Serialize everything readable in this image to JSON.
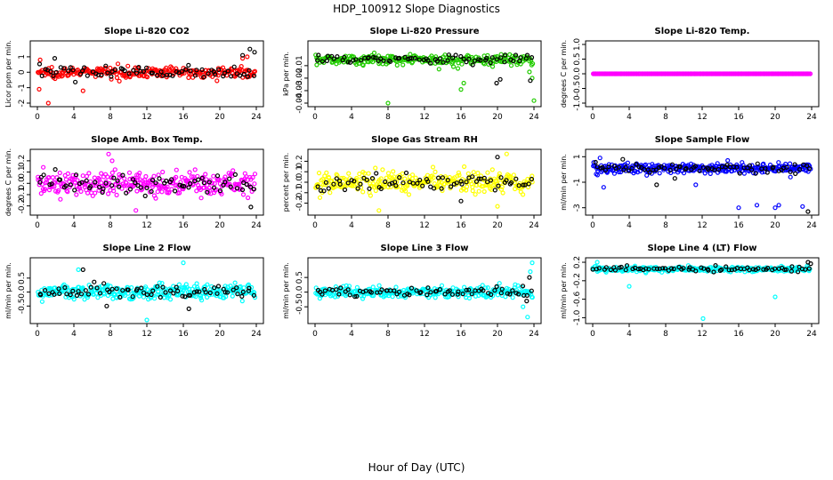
{
  "figure": {
    "title": "HDP_100912  Slope Diagnostics",
    "xlabel": "Hour of Day (UTC)"
  },
  "chart_data": [
    {
      "type": "scatter",
      "title": "Slope Li-820 CO2",
      "ylabel": "Licor ppm per min.",
      "xlim": [
        0,
        24
      ],
      "ylim": [
        -2,
        1.8
      ],
      "xticks": [
        0,
        4,
        8,
        12,
        16,
        20,
        24
      ],
      "xtick_labels": [
        "0",
        "4",
        "8",
        "12",
        "16",
        "20",
        "24"
      ],
      "yticks": [
        -2,
        -1,
        0,
        1
      ],
      "ytick_labels": [
        "-2",
        "-1",
        "0",
        "1"
      ],
      "series": [
        {
          "name": "points",
          "color": "#ff0000",
          "center": 0,
          "spread": 0.3,
          "count": 260,
          "outliers": [
            [
              0.2,
              -1.1
            ],
            [
              0.3,
              0.8
            ],
            [
              1.2,
              -2.0
            ],
            [
              5,
              -1.2
            ],
            [
              22.5,
              0.9
            ],
            [
              23,
              1.0
            ]
          ]
        },
        {
          "name": "black points",
          "color": "#000000",
          "center": 0,
          "spread": 0.35,
          "count": 70,
          "outliers": [
            [
              23.3,
              1.5
            ],
            [
              23.8,
              1.3
            ],
            [
              22.5,
              1.1
            ],
            [
              1.9,
              0.9
            ]
          ]
        }
      ]
    },
    {
      "type": "scatter",
      "title": "Slope Li-820 Pressure",
      "ylabel": "kPa per min.",
      "xlim": [
        0,
        24
      ],
      "ylim": [
        -0.04,
        0.007
      ],
      "xticks": [
        0,
        4,
        8,
        12,
        16,
        20,
        24
      ],
      "xtick_labels": [
        "0",
        "4",
        "8",
        "12",
        "16",
        "20",
        "24"
      ],
      "yticks": [
        -0.04,
        -0.03,
        -0.02,
        -0.01
      ],
      "ytick_labels": [
        "-0.04",
        "-0.03",
        "-0.02",
        "-0.01"
      ],
      "series": [
        {
          "name": "points",
          "color": "#22cc00",
          "center": -0.005,
          "spread": 0.004,
          "count": 260,
          "outliers": [
            [
              8,
              -0.04
            ],
            [
              16,
              -0.029
            ],
            [
              16.3,
              -0.024
            ],
            [
              24,
              -0.038
            ],
            [
              23.8,
              -0.02
            ],
            [
              23.5,
              -0.015
            ]
          ]
        },
        {
          "name": "black points",
          "color": "#000000",
          "center": -0.005,
          "spread": 0.003,
          "count": 70,
          "outliers": [
            [
              19.9,
              -0.024
            ],
            [
              20.3,
              -0.021
            ],
            [
              23.6,
              -0.022
            ]
          ]
        }
      ]
    },
    {
      "type": "scatter",
      "title": "Slope Li-820 Temp.",
      "ylabel": "degrees C per min.",
      "xlim": [
        0,
        24
      ],
      "ylim": [
        -1,
        1
      ],
      "xticks": [
        0,
        4,
        8,
        12,
        16,
        20,
        24
      ],
      "xtick_labels": [
        "0",
        "4",
        "8",
        "12",
        "16",
        "20",
        "24"
      ],
      "yticks": [
        -1,
        -0.5,
        0,
        0.5,
        1
      ],
      "ytick_labels": [
        "-1.0",
        "-0.5",
        "0.0",
        "0.5",
        "1.0"
      ],
      "series": [
        {
          "name": "points",
          "color": "#ff00ff",
          "center": 0,
          "spread": 0.0,
          "count": 330,
          "outliers": []
        }
      ]
    },
    {
      "type": "scatter",
      "title": "Slope Amb. Box Temp.",
      "ylabel": "degrees C per min.",
      "xlim": [
        0,
        24
      ],
      "ylim": [
        -0.25,
        0.27
      ],
      "xticks": [
        0,
        4,
        8,
        12,
        16,
        20,
        24
      ],
      "xtick_labels": [
        "0",
        "4",
        "8",
        "12",
        "16",
        "20",
        "24"
      ],
      "yticks": [
        -0.2,
        -0.1,
        0,
        0.1,
        0.2
      ],
      "ytick_labels": [
        "-0.2",
        "-0.1",
        "0.0",
        "0.1",
        "0.2"
      ],
      "series": [
        {
          "name": "points",
          "color": "#ff00ff",
          "center": 0,
          "spread": 0.1,
          "count": 300,
          "outliers": [
            [
              7.8,
              0.26
            ],
            [
              10.8,
              -0.24
            ],
            [
              8.2,
              0.2
            ]
          ]
        },
        {
          "name": "black points",
          "color": "#000000",
          "center": 0,
          "spread": 0.08,
          "count": 70,
          "outliers": [
            [
              23.4,
              -0.21
            ]
          ]
        }
      ]
    },
    {
      "type": "scatter",
      "title": "Slope Gas Stream RH",
      "ylabel": "percent per min.",
      "xlim": [
        0,
        24
      ],
      "ylim": [
        -0.28,
        0.28
      ],
      "xticks": [
        0,
        4,
        8,
        12,
        16,
        20,
        24
      ],
      "xtick_labels": [
        "0",
        "4",
        "8",
        "12",
        "16",
        "20",
        "24"
      ],
      "yticks": [
        -0.2,
        -0.1,
        0,
        0.1,
        0.2
      ],
      "ytick_labels": [
        "-0.2",
        "-0.1",
        "0.0",
        "0.1",
        "0.2"
      ],
      "series": [
        {
          "name": "points",
          "color": "#ffff00",
          "center": 0,
          "spread": 0.08,
          "count": 300,
          "outliers": [
            [
              7,
              -0.27
            ],
            [
              20,
              -0.23
            ],
            [
              21,
              0.27
            ]
          ]
        },
        {
          "name": "black points",
          "color": "#000000",
          "center": 0,
          "spread": 0.07,
          "count": 70,
          "outliers": [
            [
              20,
              0.24
            ],
            [
              16,
              -0.18
            ]
          ]
        }
      ]
    },
    {
      "type": "scatter",
      "title": "Slope Sample Flow",
      "ylabel": "ml/min per min.",
      "xlim": [
        0,
        24
      ],
      "ylim": [
        -3.3,
        1.3
      ],
      "xticks": [
        0,
        4,
        8,
        12,
        16,
        20,
        24
      ],
      "xtick_labels": [
        "0",
        "4",
        "8",
        "12",
        "16",
        "20",
        "24"
      ],
      "yticks": [
        -3,
        -1,
        1
      ],
      "ytick_labels": [
        "-3",
        "-1",
        "1"
      ],
      "series": [
        {
          "name": "points",
          "color": "#0000ff",
          "center": 0.1,
          "spread": 0.35,
          "count": 300,
          "outliers": [
            [
              1.2,
              -1.4
            ],
            [
              11.3,
              -1.2
            ],
            [
              16,
              -3.0
            ],
            [
              18,
              -2.8
            ],
            [
              20,
              -3.0
            ],
            [
              20.4,
              -2.8
            ],
            [
              23,
              -2.9
            ],
            [
              0.8,
              0.9
            ]
          ]
        },
        {
          "name": "black points",
          "color": "#000000",
          "center": 0.1,
          "spread": 0.3,
          "count": 70,
          "outliers": [
            [
              7,
              -1.2
            ],
            [
              9,
              -0.7
            ],
            [
              23.6,
              -3.3
            ],
            [
              3.3,
              0.8
            ]
          ]
        }
      ]
    },
    {
      "type": "scatter",
      "title": "Slope Line 2 Flow",
      "ylabel": "ml/min per min.",
      "xlim": [
        0,
        24
      ],
      "ylim": [
        -1.0,
        1.1
      ],
      "xticks": [
        0,
        4,
        8,
        12,
        16,
        20,
        24
      ],
      "xtick_labels": [
        "0",
        "4",
        "8",
        "12",
        "16",
        "20",
        "24"
      ],
      "yticks": [
        -0.5,
        0,
        0.5
      ],
      "ytick_labels": [
        "-0.5",
        "0.0",
        "0.5"
      ],
      "series": [
        {
          "name": "points",
          "color": "#00ffff",
          "center": 0,
          "spread": 0.25,
          "count": 300,
          "outliers": [
            [
              12,
              -1.0
            ],
            [
              16,
              1.05
            ],
            [
              4.5,
              0.8
            ]
          ]
        },
        {
          "name": "black points",
          "color": "#000000",
          "center": 0,
          "spread": 0.2,
          "count": 70,
          "outliers": [
            [
              5,
              0.8
            ],
            [
              7.6,
              -0.5
            ],
            [
              16.6,
              -0.6
            ]
          ]
        }
      ]
    },
    {
      "type": "scatter",
      "title": "Slope Line 3 Flow",
      "ylabel": "ml/min per min.",
      "xlim": [
        0,
        24
      ],
      "ylim": [
        -0.95,
        1.05
      ],
      "xticks": [
        0,
        4,
        8,
        12,
        16,
        20,
        24
      ],
      "xtick_labels": [
        "0",
        "4",
        "8",
        "12",
        "16",
        "20",
        "24"
      ],
      "yticks": [
        -0.5,
        0,
        0.5
      ],
      "ytick_labels": [
        "-0.5",
        "0.0",
        "0.5"
      ],
      "series": [
        {
          "name": "points",
          "color": "#00ffff",
          "center": 0,
          "spread": 0.18,
          "count": 300,
          "outliers": [
            [
              23.8,
              1.0
            ],
            [
              23.3,
              -0.85
            ],
            [
              23.6,
              0.7
            ],
            [
              22.8,
              -0.5
            ]
          ]
        },
        {
          "name": "black points",
          "color": "#000000",
          "center": 0,
          "spread": 0.15,
          "count": 70,
          "outliers": [
            [
              23.5,
              0.5
            ],
            [
              23.2,
              -0.3
            ]
          ]
        }
      ]
    },
    {
      "type": "scatter",
      "title": "Slope Line 4 (LT) Flow",
      "ylabel": "ml/min per min.",
      "xlim": [
        0,
        24
      ],
      "ylim": [
        -1.05,
        0.22
      ],
      "xticks": [
        0,
        4,
        8,
        12,
        16,
        20,
        24
      ],
      "xtick_labels": [
        "0",
        "4",
        "8",
        "12",
        "16",
        "20",
        "24"
      ],
      "yticks": [
        -1,
        -0.6,
        -0.2,
        0.2
      ],
      "ytick_labels": [
        "-1.0",
        "-0.6",
        "-0.2",
        "0.2"
      ],
      "series": [
        {
          "name": "points",
          "color": "#00ffff",
          "center": 0.05,
          "spread": 0.05,
          "count": 300,
          "outliers": [
            [
              4,
              -0.32
            ],
            [
              12.1,
              -1.02
            ],
            [
              20,
              -0.55
            ],
            [
              0.5,
              0.2
            ]
          ]
        },
        {
          "name": "black points",
          "color": "#000000",
          "center": 0.06,
          "spread": 0.05,
          "count": 70,
          "outliers": [
            [
              23.6,
              0.2
            ],
            [
              23.9,
              0.17
            ]
          ]
        }
      ]
    }
  ]
}
